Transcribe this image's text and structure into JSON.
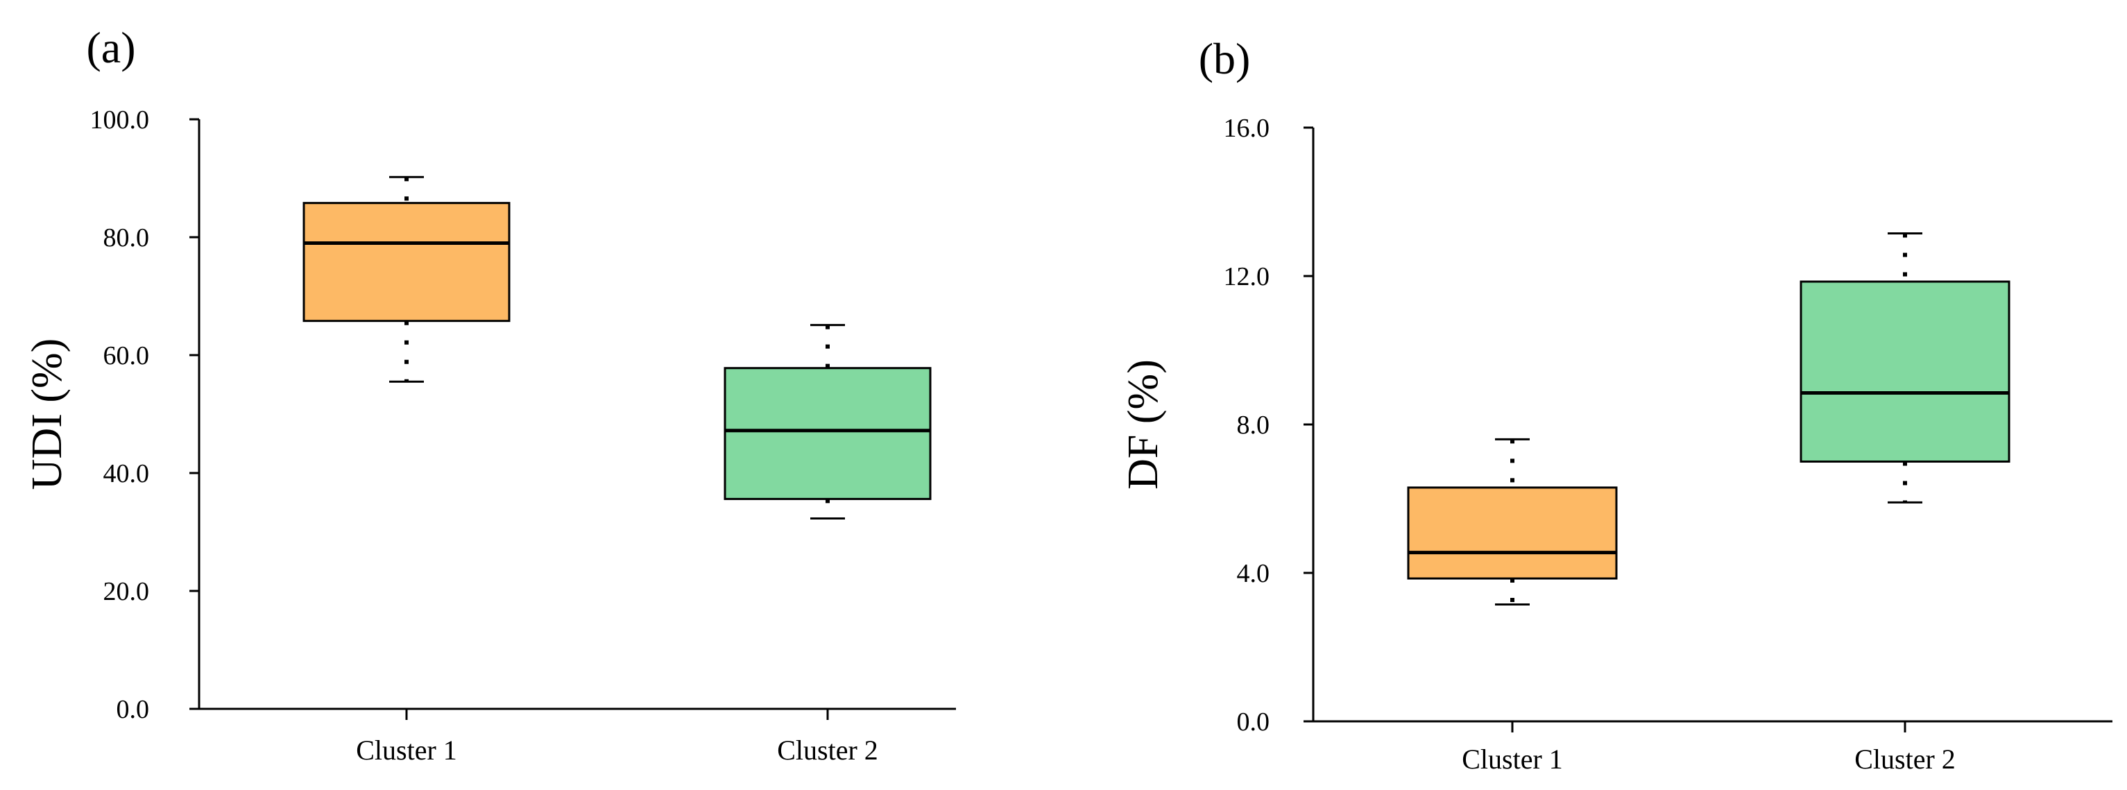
{
  "chart_data": [
    {
      "type": "box",
      "panel_label": "(a)",
      "ylabel": "UDI (%)",
      "xlabel": "",
      "ylim": [
        0,
        100
      ],
      "yticks": [
        0,
        20,
        40,
        60,
        80,
        100
      ],
      "ytick_labels": [
        "0.0",
        "20.0",
        "40.0",
        "60.0",
        "80.0",
        "100.0"
      ],
      "categories": [
        "Cluster 1",
        "Cluster 2"
      ],
      "boxes": [
        {
          "name": "Cluster 1",
          "whisker_low": 55.5,
          "q1": 65.8,
          "median": 79.0,
          "q3": 85.8,
          "whisker_high": 90.2,
          "color": "#FDB965"
        },
        {
          "name": "Cluster 2",
          "whisker_low": 32.3,
          "q1": 35.6,
          "median": 47.2,
          "q3": 57.8,
          "whisker_high": 65.1,
          "color": "#82D9A0"
        }
      ]
    },
    {
      "type": "box",
      "panel_label": "(b)",
      "ylabel": "DF (%)",
      "xlabel": "",
      "ylim": [
        0,
        16
      ],
      "yticks": [
        0,
        4,
        8,
        12,
        16
      ],
      "ytick_labels": [
        "0.0",
        "4.0",
        "8.0",
        "12.0",
        "16.0"
      ],
      "categories": [
        "Cluster 1",
        "Cluster 2"
      ],
      "boxes": [
        {
          "name": "Cluster 1",
          "whisker_low": 3.15,
          "q1": 3.85,
          "median": 4.55,
          "q3": 6.3,
          "whisker_high": 7.6,
          "color": "#FDB965"
        },
        {
          "name": "Cluster 2",
          "whisker_low": 5.9,
          "q1": 7.0,
          "median": 8.85,
          "q3": 11.85,
          "whisker_high": 13.15,
          "color": "#82D9A0"
        }
      ]
    }
  ]
}
